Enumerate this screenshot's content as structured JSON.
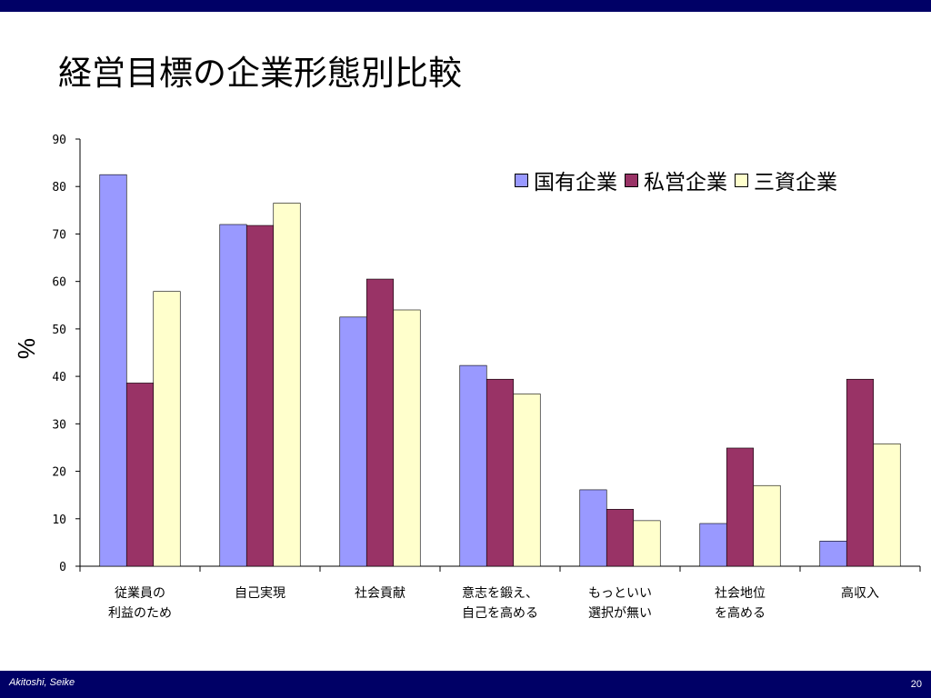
{
  "slide": {
    "title": "経営目標の企業形態別比較",
    "footer_author": "Akitoshi, Seike",
    "page_number": "20"
  },
  "colors": {
    "band": "#000066",
    "series": [
      "#9999ff",
      "#993366",
      "#ffffcc"
    ]
  },
  "chart_data": {
    "type": "bar",
    "ylabel": "%",
    "ylim": [
      0,
      90
    ],
    "yticks": [
      "0",
      "10",
      "20",
      "30",
      "40",
      "50",
      "60",
      "70",
      "80",
      "90"
    ],
    "categories": [
      [
        "従業員の",
        "利益のため"
      ],
      [
        "自己実現"
      ],
      [
        "社会貢献"
      ],
      [
        "意志を鍛え、",
        "自己を高める"
      ],
      [
        "もっといい",
        "選択が無い"
      ],
      [
        "社会地位",
        "を高める"
      ],
      [
        "高収入"
      ]
    ],
    "series": [
      {
        "name": "国有企業",
        "values": [
          82.5,
          72.0,
          52.5,
          42.3,
          16.1,
          9.0,
          5.3
        ]
      },
      {
        "name": "私営企業",
        "values": [
          38.6,
          71.8,
          60.5,
          39.4,
          12.0,
          24.9,
          39.4
        ]
      },
      {
        "name": "三資企業",
        "values": [
          57.9,
          76.5,
          54.0,
          36.3,
          9.6,
          17.0,
          25.8
        ]
      }
    ],
    "legend_position": "top-right",
    "grid": false
  }
}
